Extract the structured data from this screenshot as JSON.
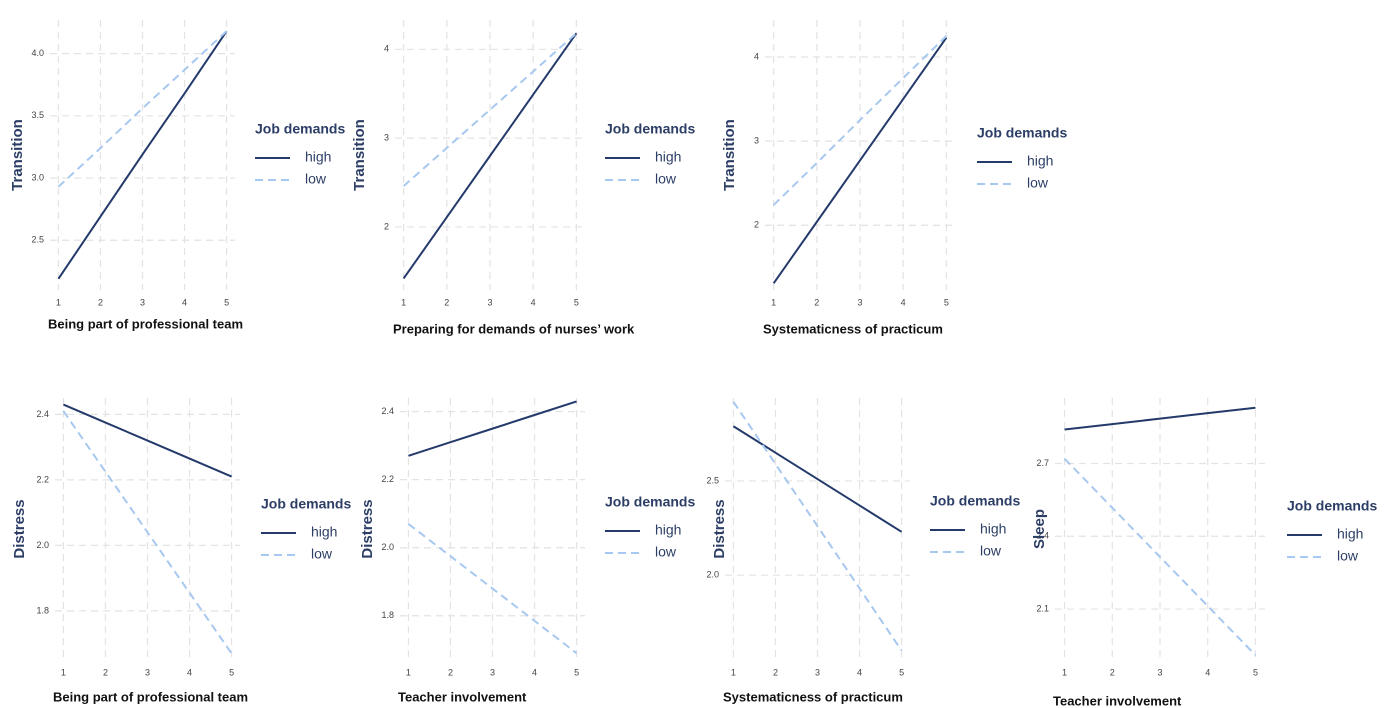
{
  "chart_data": [
    {
      "type": "line",
      "x_label": "Being part of professional team",
      "y_label": "Transition",
      "legend_title": "Job demands",
      "legend": "right",
      "grid": true,
      "x": [
        1,
        2,
        3,
        4,
        5
      ],
      "xlim": [
        0.8,
        5.2
      ],
      "xticks": [
        1,
        2,
        3,
        4,
        5
      ],
      "ylim": [
        2.1,
        4.27
      ],
      "yticks": [
        2.5,
        {
          "value": 3.0,
          "label": "3.0"
        },
        3.5,
        {
          "value": 4.0,
          "label": "4.0"
        }
      ],
      "series": [
        {
          "name": "high",
          "color": "#243a6b",
          "dash": false,
          "values": [
            2.19,
            2.69,
            3.19,
            3.68,
            4.18
          ]
        },
        {
          "name": "low",
          "color": "#a7c8f0",
          "dash": true,
          "values": [
            2.93,
            3.24,
            3.56,
            3.87,
            4.18
          ]
        }
      ]
    },
    {
      "type": "line",
      "x_label": "Preparing for demands of nurses’ work",
      "y_label": "Transition",
      "legend_title": "Job demands",
      "legend": "right",
      "grid": true,
      "x": [
        1,
        2,
        3,
        4,
        5
      ],
      "xlim": [
        0.8,
        5.2
      ],
      "xticks": [
        1,
        2,
        3,
        4,
        5
      ],
      "ylim": [
        1.29,
        4.33
      ],
      "yticks": [
        2,
        3,
        4
      ],
      "series": [
        {
          "name": "high",
          "color": "#243a6b",
          "dash": false,
          "values": [
            1.42,
            2.11,
            2.8,
            3.49,
            4.18
          ]
        },
        {
          "name": "low",
          "color": "#a7c8f0",
          "dash": true,
          "values": [
            2.46,
            2.89,
            3.32,
            3.75,
            4.18
          ]
        }
      ]
    },
    {
      "type": "line",
      "x_label": "Systematicness of practicum",
      "y_label": "Transition",
      "legend_title": "Job demands",
      "legend": "right",
      "grid": true,
      "x": [
        1,
        2,
        3,
        4,
        5
      ],
      "xlim": [
        0.8,
        5.2
      ],
      "xticks": [
        1,
        2,
        3,
        4,
        5
      ],
      "ylim": [
        1.23,
        4.44
      ],
      "yticks": [
        2,
        3,
        4
      ],
      "series": [
        {
          "name": "high",
          "color": "#243a6b",
          "dash": false,
          "values": [
            1.31,
            2.04,
            2.77,
            3.5,
            4.23
          ]
        },
        {
          "name": "low",
          "color": "#a7c8f0",
          "dash": true,
          "values": [
            2.24,
            2.74,
            3.25,
            3.75,
            4.25
          ]
        }
      ]
    },
    {
      "type": "line",
      "x_label": "Being part of professional team",
      "y_label": "Distress",
      "legend_title": "Job demands",
      "legend": "right",
      "grid": true,
      "x": [
        1,
        2,
        3,
        4,
        5
      ],
      "xlim": [
        0.8,
        5.2
      ],
      "xticks": [
        1,
        2,
        3,
        4,
        5
      ],
      "ylim": [
        1.65,
        2.45
      ],
      "yticks": [
        1.8,
        {
          "value": 2.0,
          "label": "2.0"
        },
        2.2,
        2.4
      ],
      "series": [
        {
          "name": "high",
          "color": "#243a6b",
          "dash": false,
          "values": [
            2.43,
            2.375,
            2.32,
            2.265,
            2.21
          ]
        },
        {
          "name": "low",
          "color": "#a7c8f0",
          "dash": true,
          "values": [
            2.41,
            2.225,
            2.04,
            1.855,
            1.67
          ]
        }
      ]
    },
    {
      "type": "line",
      "x_label": "Teacher involvement",
      "y_label": "Distress",
      "legend_title": "Job demands",
      "legend": "right",
      "grid": true,
      "x": [
        1,
        2,
        3,
        4,
        5
      ],
      "xlim": [
        0.8,
        5.2
      ],
      "xticks": [
        1,
        2,
        3,
        4,
        5
      ],
      "ylim": [
        1.67,
        2.44
      ],
      "yticks": [
        1.8,
        {
          "value": 2.0,
          "label": "2.0"
        },
        2.2,
        2.4
      ],
      "series": [
        {
          "name": "high",
          "color": "#243a6b",
          "dash": false,
          "values": [
            2.27,
            2.31,
            2.35,
            2.39,
            2.43
          ]
        },
        {
          "name": "low",
          "color": "#a7c8f0",
          "dash": true,
          "values": [
            2.07,
            1.975,
            1.88,
            1.785,
            1.69
          ]
        }
      ]
    },
    {
      "type": "line",
      "x_label": "Systematicness of practicum",
      "y_label": "Distress",
      "legend_title": "Job demands",
      "legend": "right",
      "grid": true,
      "x": [
        1,
        2,
        3,
        4,
        5
      ],
      "xlim": [
        0.8,
        5.2
      ],
      "xticks": [
        1,
        2,
        3,
        4,
        5
      ],
      "ylim": [
        1.55,
        2.94
      ],
      "yticks": [
        {
          "value": 2.0,
          "label": "2.0"
        },
        2.5
      ],
      "series": [
        {
          "name": "high",
          "color": "#243a6b",
          "dash": false,
          "values": [
            2.79,
            2.65,
            2.51,
            2.37,
            2.23
          ]
        },
        {
          "name": "low",
          "color": "#a7c8f0",
          "dash": true,
          "values": [
            2.92,
            2.59,
            2.26,
            1.93,
            1.6
          ]
        }
      ]
    },
    {
      "type": "line",
      "x_label": "Teacher involvement",
      "y_label": "Sleep",
      "legend_title": "Job demands",
      "legend": "right",
      "grid": true,
      "x": [
        1,
        2,
        3,
        4,
        5
      ],
      "xlim": [
        0.8,
        5.2
      ],
      "xticks": [
        1,
        2,
        3,
        4,
        5
      ],
      "ylim": [
        1.89,
        2.97
      ],
      "yticks": [
        2.1,
        2.4,
        2.7
      ],
      "series": [
        {
          "name": "high",
          "color": "#243a6b",
          "dash": false,
          "values": [
            2.84,
            2.8625,
            2.885,
            2.9075,
            2.93
          ]
        },
        {
          "name": "low",
          "color": "#a7c8f0",
          "dash": true,
          "values": [
            2.72,
            2.5175,
            2.315,
            2.1125,
            1.91
          ]
        }
      ]
    }
  ]
}
